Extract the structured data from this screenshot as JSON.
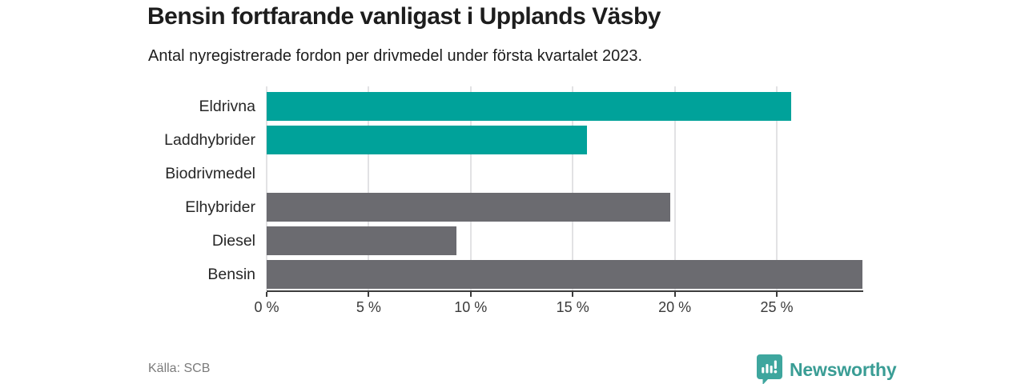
{
  "header": {
    "title": "Bensin fortfarande vanligast i Upplands Väsby",
    "subtitle": "Antal nyregistrerade fordon per drivmedel under första kvartalet 2023."
  },
  "chart_data": {
    "type": "bar",
    "orientation": "horizontal",
    "title": "Bensin fortfarande vanligast i Upplands Väsby",
    "subtitle": "Antal nyregistrerade fordon per drivmedel under första kvartalet 2023.",
    "categories": [
      "Eldrivna",
      "Laddhybrider",
      "Biodrivmedel",
      "Elhybrider",
      "Diesel",
      "Bensin"
    ],
    "values": [
      25.7,
      15.7,
      0,
      19.8,
      9.3,
      29.2
    ],
    "unit": "%",
    "xlim": [
      0,
      29.2
    ],
    "x_ticks": [
      0,
      5,
      10,
      15,
      20,
      25
    ],
    "x_tick_labels": [
      "0 %",
      "5 %",
      "10 %",
      "15 %",
      "20 %",
      "25 %"
    ],
    "grid": true,
    "legend": "none",
    "bar_colors": [
      "#00a29a",
      "#00a29a",
      "#00a29a",
      "#6b6b70",
      "#6b6b70",
      "#6b6b70"
    ],
    "colors": {
      "highlight": "#00a29a",
      "default": "#6b6b70",
      "gridline": "#e2e2e4",
      "axis": "#3c3c3c"
    }
  },
  "footer": {
    "source": "Källa: SCB",
    "logo_text": "Newsworthy",
    "logo_color": "#3a9d95",
    "logo_mark_color": "#3ea69e"
  }
}
